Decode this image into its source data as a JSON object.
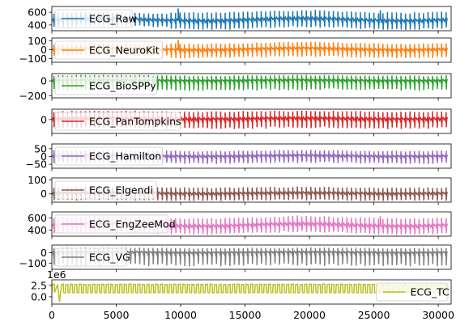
{
  "chart_data": {
    "type": "line",
    "x_range": [
      0,
      31000
    ],
    "x_ticks": [
      0,
      5000,
      10000,
      15000,
      20000,
      25000,
      30000
    ],
    "x_tick_labels": [
      "0",
      "5000",
      "10000",
      "15000",
      "20000",
      "25000",
      "30000"
    ],
    "grid": false,
    "panels": [
      {
        "series_name": "ECG_Raw",
        "color": "#1f77b4",
        "ylim": [
          310,
          690
        ],
        "y_ticks": [
          400,
          600
        ],
        "y_tick_labels": [
          "400",
          "600"
        ],
        "legend": "upper-left",
        "signal": {
          "kind": "ecg",
          "baseline": 470,
          "peak": 150,
          "trough": -130,
          "wander": 20,
          "burst_start": 9000,
          "start": 0,
          "peak_y_events": [
            [
              9800,
              660
            ],
            [
              25500,
              630
            ]
          ]
        }
      },
      {
        "series_name": "ECG_NeuroKit",
        "color": "#ff7f0e",
        "ylim": [
          -140,
          130
        ],
        "y_ticks": [
          -100,
          0,
          100
        ],
        "y_tick_labels": [
          "−100",
          "0",
          "100"
        ],
        "legend": "upper-left",
        "signal": {
          "kind": "ecg",
          "baseline": 0,
          "peak": 80,
          "trough": -90,
          "wander": 10,
          "burst_start": 9000,
          "start": 0,
          "peak_y_events": [
            [
              9800,
              110
            ]
          ]
        }
      },
      {
        "series_name": "ECG_BioSPPy",
        "color": "#2ca02c",
        "ylim": [
          -230,
          100
        ],
        "y_ticks": [
          -200,
          0
        ],
        "y_tick_labels": [
          "−200",
          "0"
        ],
        "legend": "upper-left",
        "signal": {
          "kind": "ecg",
          "baseline": 0,
          "peak": 80,
          "trough": -130,
          "wander": 5,
          "burst_start": 0,
          "start": 0,
          "peak_y_events": []
        }
      },
      {
        "series_name": "ECG_PanTompkins",
        "color": "#d62728",
        "ylim": [
          -60,
          45
        ],
        "y_ticks": [
          0
        ],
        "y_tick_labels": [
          "0"
        ],
        "legend": "upper-left",
        "signal": {
          "kind": "ecg",
          "baseline": 0,
          "peak": 38,
          "trough": -40,
          "wander": 2,
          "burst_start": 0,
          "start": 0,
          "peak_y_events": []
        }
      },
      {
        "series_name": "ECG_Hamilton",
        "color": "#9467bd",
        "ylim": [
          -75,
          80
        ],
        "y_ticks": [
          -50,
          0,
          50
        ],
        "y_tick_labels": [
          "−50",
          "0",
          "50"
        ],
        "legend": "upper-left",
        "signal": {
          "kind": "ecg",
          "baseline": 0,
          "peak": 40,
          "trough": -45,
          "wander": 3,
          "burst_start": 0,
          "start": 0,
          "peak_y_events": []
        }
      },
      {
        "series_name": "ECG_Elgendi",
        "color": "#8c564b",
        "ylim": [
          -60,
          115
        ],
        "y_ticks": [
          0,
          100
        ],
        "y_tick_labels": [
          "0",
          "100"
        ],
        "legend": "upper-left",
        "signal": {
          "kind": "ecg",
          "baseline": 0,
          "peak": 50,
          "trough": -50,
          "wander": 3,
          "burst_start": 0,
          "start": 0,
          "peak_y_events": []
        }
      },
      {
        "series_name": "ECG_EngZeeMod",
        "color": "#e377c2",
        "ylim": [
          300,
          700
        ],
        "y_ticks": [
          400,
          600
        ],
        "y_tick_labels": [
          "400",
          "600"
        ],
        "legend": "upper-left",
        "signal": {
          "kind": "ecg",
          "baseline": 470,
          "peak": 150,
          "trough": -130,
          "wander": 20,
          "burst_start": 0,
          "start": 0,
          "peak_y_events": [
            [
              25500,
              630
            ]
          ]
        }
      },
      {
        "series_name": "ECG_VG",
        "color": "#7f7f7f",
        "ylim": [
          -160,
          75
        ],
        "y_ticks": [
          -100,
          0
        ],
        "y_tick_labels": [
          "−100",
          "0"
        ],
        "legend": "upper-left",
        "signal": {
          "kind": "ecg",
          "baseline": 0,
          "peak": 50,
          "trough": -130,
          "wander": 3,
          "burst_start": 0,
          "start": 0,
          "peak_y_events": []
        }
      },
      {
        "series_name": "ECG_TC",
        "color": "#bcbd22",
        "ylim": [
          -1.6,
          3.7
        ],
        "y_ticks": [
          0.0,
          2.5
        ],
        "y_tick_labels": [
          "0.0",
          "2.5"
        ],
        "offset_label": "1e6",
        "legend": "lower-right",
        "signal": {
          "kind": "square",
          "baseline": 0.9,
          "peak": 2.7,
          "trough": 0.9,
          "wander": 0,
          "burst_start": 0,
          "start": 0,
          "dip": [
            [
              600,
              -1.2
            ]
          ]
        }
      }
    ]
  }
}
